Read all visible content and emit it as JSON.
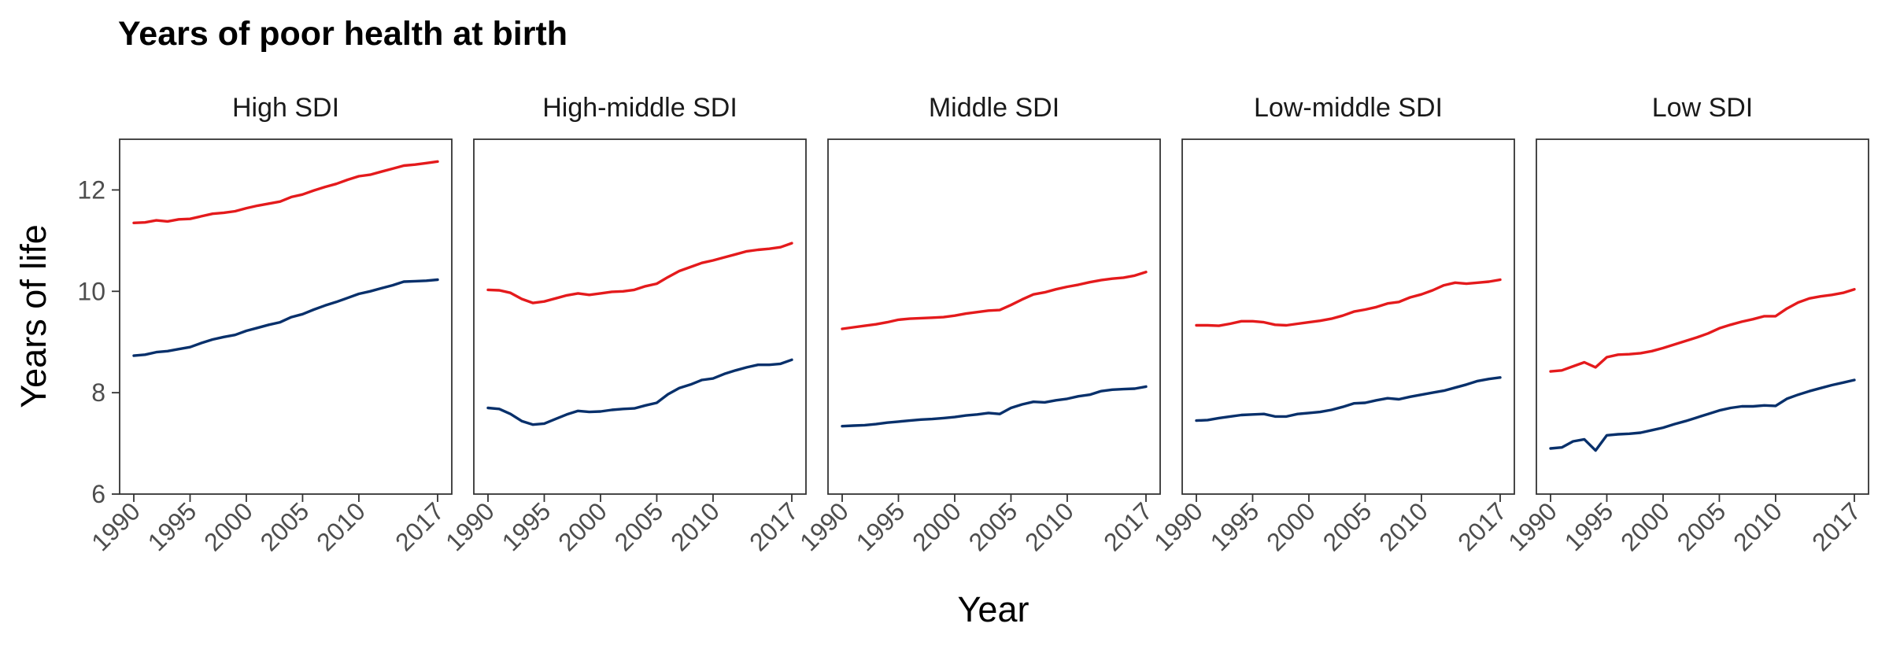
{
  "chart_data": {
    "type": "line",
    "title": "Years of poor health at birth",
    "xlabel": "Year",
    "ylabel": "Years of life",
    "xlim": [
      1990,
      2017
    ],
    "ylim": [
      6,
      13
    ],
    "x_ticks": [
      1990,
      1995,
      2000,
      2005,
      2010,
      2017
    ],
    "y_ticks": [
      6,
      8,
      10,
      12
    ],
    "grid": false,
    "legend": "none",
    "series_colors": [
      "#e41a1c",
      "#08306b"
    ],
    "x": [
      1990,
      1991,
      1992,
      1993,
      1994,
      1995,
      1996,
      1997,
      1998,
      1999,
      2000,
      2001,
      2002,
      2003,
      2004,
      2005,
      2006,
      2007,
      2008,
      2009,
      2010,
      2011,
      2012,
      2013,
      2014,
      2015,
      2016,
      2017
    ],
    "panels": [
      {
        "name": "High SDI",
        "series": [
          {
            "values": [
              11.35,
              11.36,
              11.4,
              11.38,
              11.42,
              11.43,
              11.48,
              11.53,
              11.55,
              11.58,
              11.64,
              11.69,
              11.73,
              11.77,
              11.86,
              11.91,
              11.99,
              12.06,
              12.12,
              12.2,
              12.27,
              12.3,
              12.36,
              12.42,
              12.48,
              12.5,
              12.53,
              12.56
            ]
          },
          {
            "values": [
              8.73,
              8.75,
              8.8,
              8.82,
              8.86,
              8.9,
              8.98,
              9.05,
              9.1,
              9.14,
              9.22,
              9.28,
              9.34,
              9.39,
              9.49,
              9.55,
              9.64,
              9.72,
              9.79,
              9.87,
              9.95,
              10.0,
              10.06,
              10.12,
              10.19,
              10.2,
              10.21,
              10.23
            ]
          }
        ]
      },
      {
        "name": "High-middle SDI",
        "series": [
          {
            "values": [
              10.03,
              10.02,
              9.97,
              9.85,
              9.77,
              9.8,
              9.86,
              9.92,
              9.96,
              9.93,
              9.96,
              9.99,
              10.0,
              10.03,
              10.1,
              10.15,
              10.28,
              10.4,
              10.48,
              10.56,
              10.61,
              10.67,
              10.73,
              10.79,
              10.82,
              10.84,
              10.87,
              10.95
            ]
          },
          {
            "values": [
              7.7,
              7.68,
              7.58,
              7.44,
              7.37,
              7.39,
              7.48,
              7.57,
              7.64,
              7.62,
              7.63,
              7.66,
              7.68,
              7.69,
              7.75,
              7.8,
              7.97,
              8.09,
              8.16,
              8.25,
              8.28,
              8.37,
              8.44,
              8.5,
              8.55,
              8.55,
              8.57,
              8.65
            ]
          }
        ]
      },
      {
        "name": "Middle SDI",
        "series": [
          {
            "values": [
              9.26,
              9.29,
              9.32,
              9.35,
              9.39,
              9.44,
              9.46,
              9.47,
              9.48,
              9.49,
              9.52,
              9.56,
              9.59,
              9.62,
              9.63,
              9.73,
              9.84,
              9.94,
              9.98,
              10.04,
              10.09,
              10.13,
              10.18,
              10.22,
              10.25,
              10.27,
              10.31,
              10.38
            ]
          },
          {
            "values": [
              7.34,
              7.35,
              7.36,
              7.38,
              7.41,
              7.43,
              7.45,
              7.47,
              7.48,
              7.5,
              7.52,
              7.55,
              7.57,
              7.6,
              7.58,
              7.7,
              7.77,
              7.82,
              7.81,
              7.85,
              7.88,
              7.93,
              7.96,
              8.03,
              8.06,
              8.07,
              8.08,
              8.12
            ]
          }
        ]
      },
      {
        "name": "Low-middle SDI",
        "series": [
          {
            "values": [
              9.33,
              9.33,
              9.32,
              9.36,
              9.41,
              9.41,
              9.39,
              9.34,
              9.33,
              9.36,
              9.39,
              9.42,
              9.46,
              9.52,
              9.6,
              9.64,
              9.69,
              9.76,
              9.79,
              9.88,
              9.94,
              10.02,
              10.12,
              10.17,
              10.15,
              10.17,
              10.19,
              10.23
            ]
          },
          {
            "values": [
              7.45,
              7.46,
              7.5,
              7.53,
              7.56,
              7.57,
              7.58,
              7.53,
              7.53,
              7.58,
              7.6,
              7.62,
              7.66,
              7.72,
              7.79,
              7.8,
              7.85,
              7.89,
              7.87,
              7.92,
              7.96,
              8.0,
              8.04,
              8.1,
              8.16,
              8.23,
              8.27,
              8.3
            ]
          }
        ]
      },
      {
        "name": "Low SDI",
        "series": [
          {
            "values": [
              8.42,
              8.44,
              8.52,
              8.6,
              8.5,
              8.7,
              8.75,
              8.76,
              8.78,
              8.82,
              8.88,
              8.95,
              9.02,
              9.09,
              9.17,
              9.27,
              9.34,
              9.4,
              9.45,
              9.51,
              9.51,
              9.66,
              9.78,
              9.86,
              9.9,
              9.93,
              9.97,
              10.04
            ]
          },
          {
            "values": [
              6.9,
              6.92,
              7.04,
              7.08,
              6.86,
              7.16,
              7.18,
              7.19,
              7.21,
              7.26,
              7.31,
              7.38,
              7.44,
              7.51,
              7.58,
              7.65,
              7.7,
              7.73,
              7.73,
              7.75,
              7.74,
              7.88,
              7.96,
              8.03,
              8.09,
              8.15,
              8.2,
              8.25
            ]
          }
        ]
      }
    ]
  }
}
